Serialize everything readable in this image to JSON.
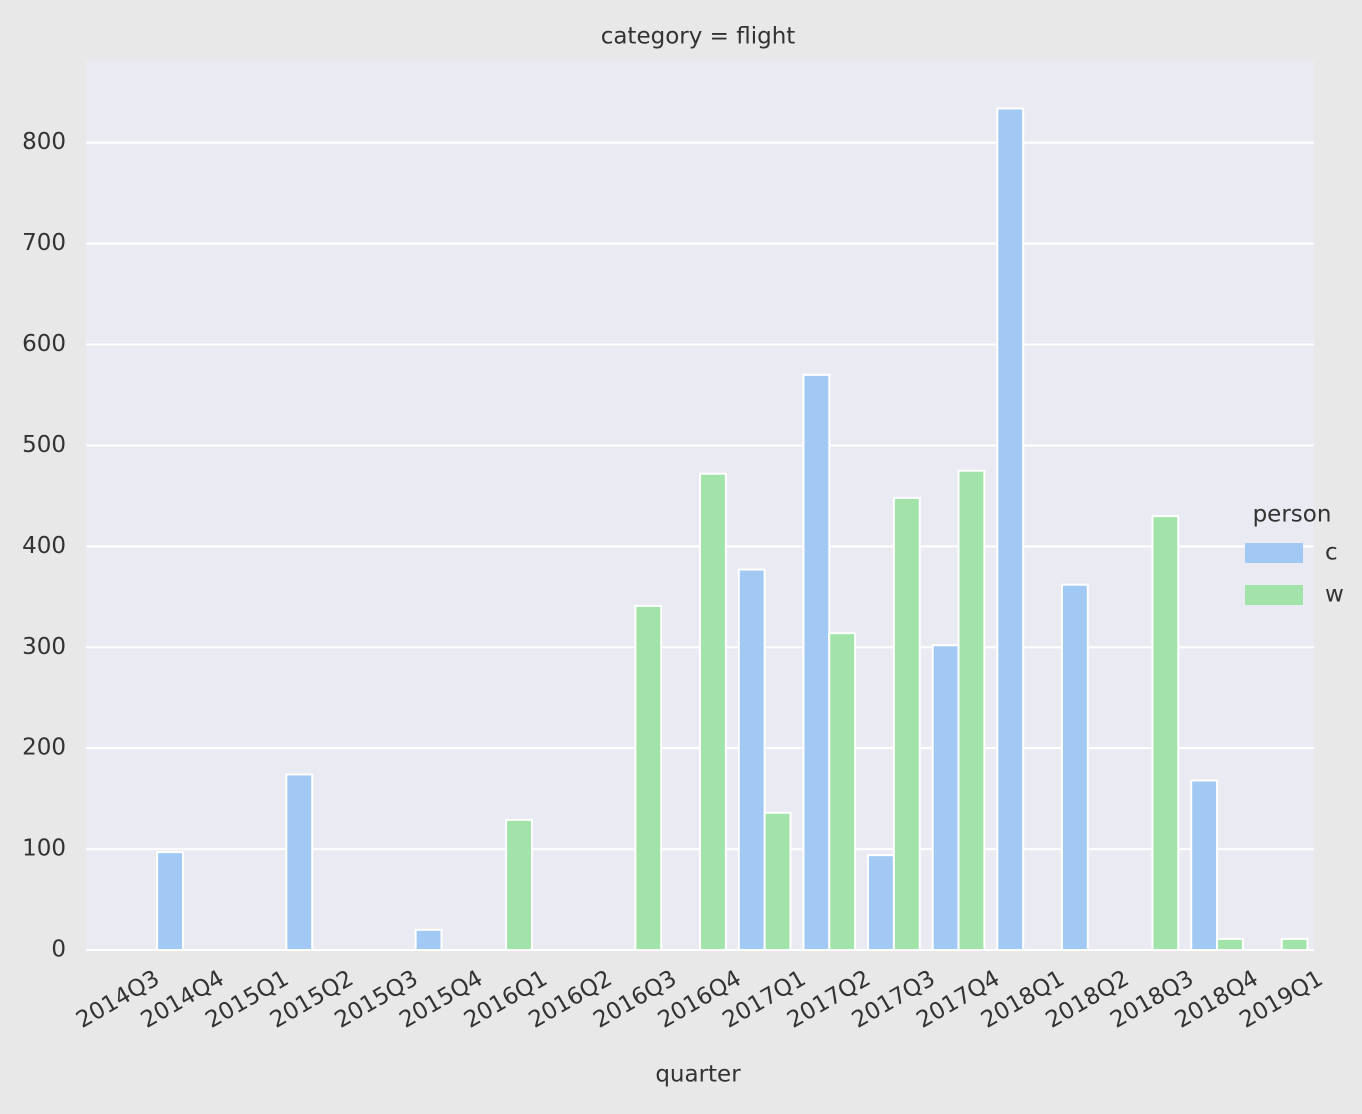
{
  "chart_data": {
    "type": "bar",
    "title": "category = flight",
    "x_label": "quarter",
    "categories": [
      "2014Q3",
      "2014Q4",
      "2015Q1",
      "2015Q2",
      "2015Q3",
      "2015Q4",
      "2016Q1",
      "2016Q2",
      "2016Q3",
      "2016Q4",
      "2017Q1",
      "2017Q2",
      "2017Q3",
      "2017Q4",
      "2018Q1",
      "2018Q2",
      "2018Q3",
      "2018Q4",
      "2019Q1"
    ],
    "series": [
      {
        "name": "c",
        "color": "#a1c9f4",
        "values": [
          null,
          97,
          null,
          174,
          null,
          20,
          null,
          null,
          null,
          null,
          377,
          570,
          94,
          302,
          834,
          362,
          null,
          168,
          null
        ]
      },
      {
        "name": "w",
        "color": "#a1e3a9",
        "values": [
          null,
          null,
          null,
          null,
          null,
          null,
          129,
          null,
          341,
          472,
          136,
          314,
          448,
          475,
          null,
          null,
          430,
          11,
          11
        ]
      }
    ],
    "legend_title": "person",
    "legend_position": "right",
    "ylim": [
      0,
      882
    ],
    "yticks": [
      0,
      100,
      200,
      300,
      400,
      500,
      600,
      700,
      800
    ],
    "grid": true
  }
}
